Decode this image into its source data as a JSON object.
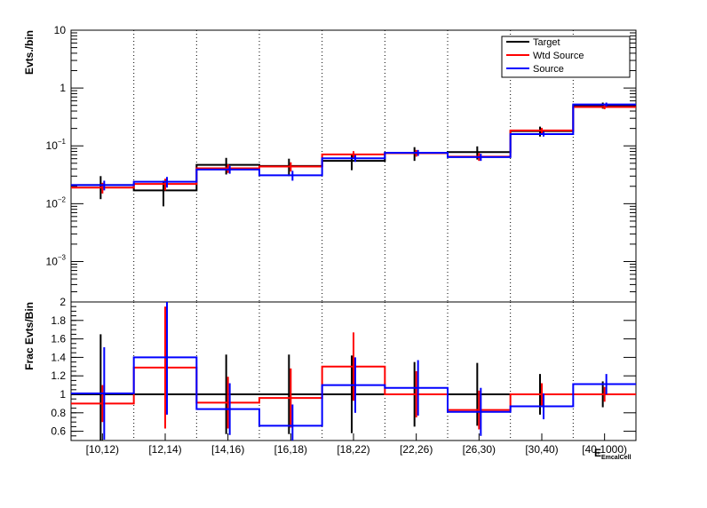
{
  "chart_data": [
    {
      "type": "line",
      "subtype": "step-histogram-with-error-bars",
      "ylabel": "Evts./bin",
      "yscale": "log",
      "ylim": [
        0.0002,
        10
      ],
      "yticks": [
        {
          "value": 10,
          "label": "10"
        },
        {
          "value": 1,
          "label": "1"
        },
        {
          "value": 0.1,
          "label": "10",
          "exp": "−1"
        },
        {
          "value": 0.01,
          "label": "10",
          "exp": "−2"
        },
        {
          "value": 0.001,
          "label": "10",
          "exp": "−3"
        }
      ],
      "categories": [
        "[10,12)",
        "[12,14)",
        "[14,16)",
        "[16,18)",
        "[18,22)",
        "[22,26)",
        "[26,30)",
        "[30,40)",
        "[40,1000)"
      ],
      "grid_x": "dotted at bin edges",
      "legend_position": "top-right",
      "series": [
        {
          "name": "Target",
          "color": "#000000",
          "values": [
            0.021,
            0.017,
            0.047,
            0.045,
            0.055,
            0.075,
            0.078,
            0.18,
            0.5
          ],
          "err": [
            0.009,
            0.008,
            0.015,
            0.015,
            0.017,
            0.02,
            0.02,
            0.035,
            0.06
          ]
        },
        {
          "name": "Wtd Source",
          "color": "#ff0000",
          "values": [
            0.019,
            0.022,
            0.041,
            0.044,
            0.071,
            0.075,
            0.065,
            0.185,
            0.47
          ],
          "err": [
            0.004,
            0.005,
            0.007,
            0.008,
            0.01,
            0.01,
            0.01,
            0.02,
            0.04
          ]
        },
        {
          "name": "Source",
          "color": "#0000ff",
          "values": [
            0.021,
            0.024,
            0.039,
            0.031,
            0.061,
            0.076,
            0.064,
            0.16,
            0.52
          ],
          "err": [
            0.004,
            0.005,
            0.006,
            0.006,
            0.008,
            0.009,
            0.009,
            0.015,
            0.04
          ]
        }
      ]
    },
    {
      "type": "line",
      "subtype": "step-ratio-with-error-bars",
      "ylabel": "Frac Evts/Bin",
      "ylim": [
        0.5,
        2.0
      ],
      "yticks": [
        0.6,
        0.8,
        1,
        1.2,
        1.4,
        1.6,
        1.8,
        2
      ],
      "categories": [
        "[10,12)",
        "[12,14)",
        "[14,16)",
        "[16,18)",
        "[18,22)",
        "[22,26)",
        "[26,30)",
        "[30,40)",
        "[40,1000)"
      ],
      "xlabel": "E",
      "xlabel_sub": "EmcalCell",
      "series": [
        {
          "name": "Target",
          "color": "#000000",
          "values": [
            1,
            1,
            1,
            1,
            1,
            1,
            1,
            1,
            1
          ],
          "err": [
            0.65,
            0.0,
            0.43,
            0.43,
            0.42,
            0.35,
            0.34,
            0.22,
            0.14
          ]
        },
        {
          "name": "Wtd Source",
          "color": "#ff0000",
          "values": [
            0.9,
            1.29,
            0.91,
            0.96,
            1.3,
            1.0,
            0.83,
            1.0,
            1.0
          ],
          "err": [
            0.2,
            0.66,
            0.28,
            0.32,
            0.37,
            0.25,
            0.21,
            0.12,
            0.08
          ]
        },
        {
          "name": "Source",
          "color": "#0000ff",
          "values": [
            1.01,
            1.4,
            0.84,
            0.66,
            1.1,
            1.07,
            0.81,
            0.87,
            1.11
          ],
          "err": [
            0.5,
            0.62,
            0.28,
            0.23,
            0.3,
            0.3,
            0.26,
            0.14,
            0.11
          ]
        }
      ]
    }
  ]
}
